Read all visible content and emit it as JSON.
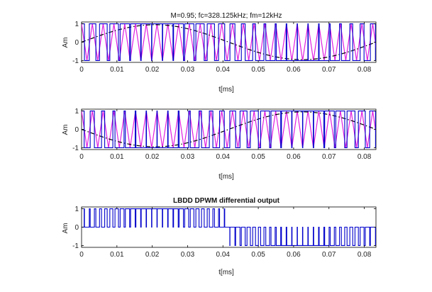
{
  "chart_data": [
    {
      "type": "line",
      "title": "M=0.95; fc=328.125kHz; fm=12kHz",
      "xlabel": "t[ms]",
      "ylabel": "Am",
      "xlim": [
        0,
        0.0833
      ],
      "ylim": [
        -1.1,
        1.1
      ],
      "xticks": [
        "0",
        "0.01",
        "0.02",
        "0.03",
        "0.04",
        "0.05",
        "0.06",
        "0.07",
        "0.08"
      ],
      "yticks": [
        "-1",
        "0",
        "1"
      ],
      "modulation_index": 0.95,
      "carrier_freq_khz": 328.125,
      "modulating_freq_khz": 12,
      "modulating_phase": "sine",
      "carrier_cycles": 27.3,
      "series": [
        {
          "style": "carrier-triangle",
          "color": "#e020e0"
        },
        {
          "style": "modulating-dashdot",
          "color": "#000000"
        },
        {
          "style": "pwm-square",
          "color": "#0000cc"
        }
      ]
    },
    {
      "type": "line",
      "title": "",
      "xlabel": "t[ms]",
      "ylabel": "Am",
      "xlim": [
        0,
        0.0833
      ],
      "ylim": [
        -1.1,
        1.1
      ],
      "xticks": [
        "0",
        "0.01",
        "0.02",
        "0.03",
        "0.04",
        "0.05",
        "0.06",
        "0.07",
        "0.08"
      ],
      "yticks": [
        "-1",
        "0",
        "1"
      ],
      "modulation_index": 0.95,
      "modulating_phase": "negative-sine",
      "series": [
        {
          "style": "carrier-triangle",
          "color": "#e020e0"
        },
        {
          "style": "modulating-dashdot",
          "color": "#000000"
        },
        {
          "style": "pwm-square",
          "color": "#0000cc"
        }
      ]
    },
    {
      "type": "line",
      "title": "LBDD DPWM differential output",
      "xlabel": "t[ms]",
      "ylabel": "Am",
      "xlim": [
        0,
        0.0833
      ],
      "ylim": [
        -1.1,
        1.1
      ],
      "xticks": [
        "0",
        "0.01",
        "0.02",
        "0.03",
        "0.04",
        "0.05",
        "0.06",
        "0.07",
        "0.08"
      ],
      "yticks": [
        "-1",
        "0",
        "1"
      ],
      "series": [
        {
          "style": "differential-pulses",
          "color": "#0000cc"
        }
      ]
    }
  ]
}
